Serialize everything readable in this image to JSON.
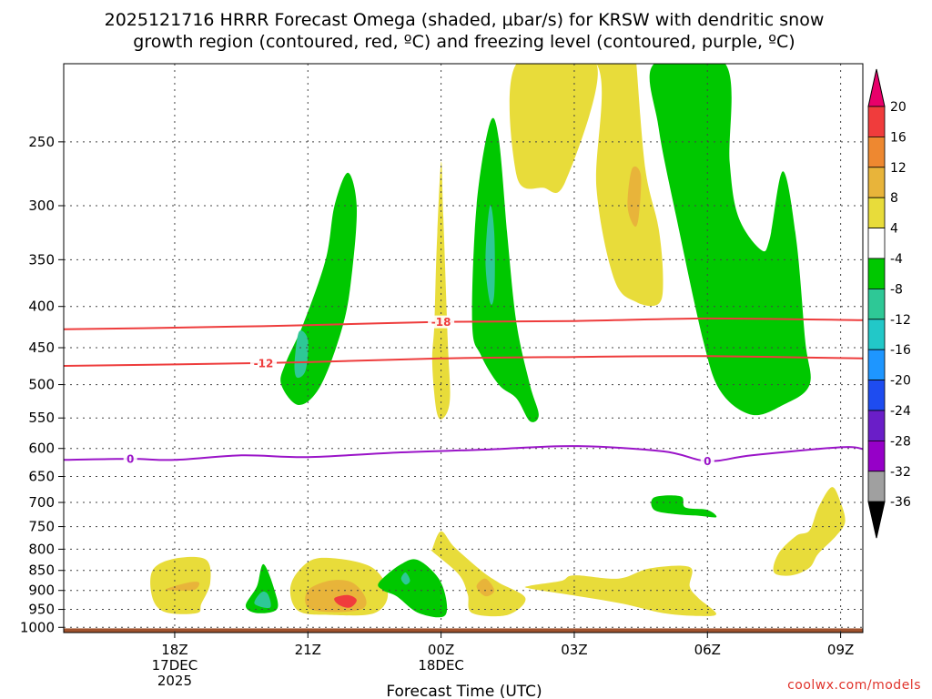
{
  "chart_data": {
    "type": "heatmap",
    "title_line1": "2025121716 HRRR Forecast Omega (shaded, µbar/s) for KRSW with dendritic snow",
    "title_line2": "growth region (contoured, red, ºC) and freezing level (contoured, purple, ºC)",
    "xlabel": "Forecast Time (UTC)",
    "credit": "coolwx.com/models",
    "x_unit": "hours since 2025121716",
    "xlim": [
      -0.5,
      17.5
    ],
    "x_ticks": [
      {
        "x": 2,
        "label": "18Z",
        "sub1": "17DEC",
        "sub2": "2025"
      },
      {
        "x": 5,
        "label": "21Z",
        "sub1": "",
        "sub2": ""
      },
      {
        "x": 8,
        "label": "00Z",
        "sub1": "18DEC",
        "sub2": ""
      },
      {
        "x": 11,
        "label": "03Z",
        "sub1": "",
        "sub2": ""
      },
      {
        "x": 14,
        "label": "06Z",
        "sub1": "",
        "sub2": ""
      },
      {
        "x": 17,
        "label": "09Z",
        "sub1": "",
        "sub2": ""
      }
    ],
    "y_ticks": [
      250,
      300,
      350,
      400,
      450,
      500,
      550,
      600,
      650,
      700,
      750,
      800,
      850,
      900,
      950,
      1000
    ],
    "ylim": [
      200,
      1015
    ],
    "y_scale": "log-pressure",
    "colorbar": {
      "levels": [
        "20",
        "16",
        "12",
        "8",
        "4",
        "-4",
        "-8",
        "-12",
        "-16",
        "-20",
        "-24",
        "-28",
        "-32",
        "-36"
      ],
      "colors": [
        "#e8006a",
        "#f03c3c",
        "#ee8830",
        "#e8b43a",
        "#e8dc3a",
        "#ffffff",
        "#00c800",
        "#2ec896",
        "#22c8c8",
        "#1e96ff",
        "#1e4cf0",
        "#6a1ec8",
        "#9600c8",
        "#a0a0a0",
        "#000000"
      ]
    },
    "red_contours": [
      {
        "label": "-18",
        "label_x": 8.0,
        "points": [
          [
            -0.5,
            427
          ],
          [
            2,
            425
          ],
          [
            5,
            422
          ],
          [
            8,
            418
          ],
          [
            11,
            417
          ],
          [
            14,
            414
          ],
          [
            17.5,
            416
          ]
        ]
      },
      {
        "label": "-12",
        "label_x": 4.0,
        "points": [
          [
            -0.5,
            474
          ],
          [
            2,
            472
          ],
          [
            5,
            469
          ],
          [
            8,
            464
          ],
          [
            11,
            462
          ],
          [
            14,
            461
          ],
          [
            17.5,
            464
          ]
        ]
      }
    ],
    "purple_contours": [
      {
        "label": "0",
        "label_x": 1.0,
        "points": [
          [
            -0.5,
            620
          ],
          [
            1,
            618
          ],
          [
            2,
            620
          ],
          [
            3.5,
            612
          ],
          [
            5,
            615
          ],
          [
            7,
            607
          ],
          [
            9,
            602
          ],
          [
            11,
            596
          ],
          [
            13,
            605
          ],
          [
            14,
            622
          ],
          [
            15,
            612
          ],
          [
            17,
            598
          ],
          [
            17.5,
            601
          ]
        ]
      }
    ],
    "label_0b_x": 14.0,
    "omega_regions": [
      {
        "color": "#e8dc3a",
        "points": [
          [
            1.5,
            850
          ],
          [
            2.0,
            822
          ],
          [
            2.7,
            824
          ],
          [
            2.8,
            880
          ],
          [
            2.6,
            935
          ],
          [
            2.5,
            960
          ],
          [
            1.8,
            958
          ],
          [
            1.5,
            920
          ]
        ]
      },
      {
        "color": "#e8b43a",
        "points": [
          [
            1.8,
            897
          ],
          [
            2.3,
            880
          ],
          [
            2.55,
            880
          ],
          [
            2.45,
            898
          ],
          [
            2.1,
            900
          ]
        ]
      },
      {
        "color": "#00c800",
        "points": [
          [
            3.6,
            940
          ],
          [
            3.85,
            890
          ],
          [
            4.0,
            835
          ],
          [
            4.25,
            900
          ],
          [
            4.3,
            950
          ],
          [
            3.85,
            960
          ]
        ]
      },
      {
        "color": "#2ec896",
        "points": [
          [
            3.8,
            935
          ],
          [
            3.95,
            905
          ],
          [
            4.1,
            910
          ],
          [
            4.15,
            945
          ]
        ]
      },
      {
        "color": "#e8dc3a",
        "points": [
          [
            4.8,
            850
          ],
          [
            5.3,
            820
          ],
          [
            6.4,
            840
          ],
          [
            6.8,
            905
          ],
          [
            6.5,
            960
          ],
          [
            5.5,
            965
          ],
          [
            4.8,
            955
          ],
          [
            4.6,
            900
          ]
        ]
      },
      {
        "color": "#e8b43a",
        "points": [
          [
            5.0,
            900
          ],
          [
            5.5,
            875
          ],
          [
            6.0,
            880
          ],
          [
            6.3,
            920
          ],
          [
            6.2,
            950
          ],
          [
            5.5,
            957
          ],
          [
            5.0,
            945
          ]
        ]
      },
      {
        "color": "#f03c3c",
        "points": [
          [
            5.6,
            920
          ],
          [
            5.9,
            912
          ],
          [
            6.1,
            925
          ],
          [
            5.95,
            945
          ],
          [
            5.7,
            938
          ]
        ]
      },
      {
        "color": "#00c800",
        "points": [
          [
            6.6,
            880
          ],
          [
            7.1,
            835
          ],
          [
            7.5,
            826
          ],
          [
            8.0,
            880
          ],
          [
            8.1,
            965
          ],
          [
            7.5,
            960
          ],
          [
            7.0,
            915
          ],
          [
            6.7,
            900
          ]
        ]
      },
      {
        "color": "#2ec896",
        "points": [
          [
            7.1,
            870
          ],
          [
            7.2,
            855
          ],
          [
            7.3,
            875
          ],
          [
            7.2,
            885
          ]
        ]
      },
      {
        "color": "#e8dc3a",
        "points": [
          [
            7.8,
            800
          ],
          [
            8.0,
            760
          ],
          [
            8.3,
            795
          ],
          [
            8.9,
            850
          ],
          [
            9.3,
            880
          ],
          [
            9.9,
            920
          ],
          [
            9.5,
            965
          ],
          [
            8.7,
            960
          ],
          [
            8.6,
            910
          ],
          [
            8.4,
            860
          ],
          [
            7.8,
            805
          ]
        ]
      },
      {
        "color": "#e8b43a",
        "points": [
          [
            8.8,
            890
          ],
          [
            9.0,
            870
          ],
          [
            9.2,
            900
          ],
          [
            9.0,
            915
          ]
        ]
      },
      {
        "color": "#00c800",
        "points": [
          [
            4.5,
            470
          ],
          [
            4.9,
            420
          ],
          [
            5.4,
            350
          ],
          [
            5.6,
            300
          ],
          [
            5.9,
            273
          ],
          [
            6.1,
            300
          ],
          [
            6.0,
            360
          ],
          [
            5.8,
            420
          ],
          [
            5.3,
            500
          ],
          [
            4.8,
            530
          ],
          [
            4.4,
            500
          ]
        ]
      },
      {
        "color": "#2ec896",
        "points": [
          [
            4.7,
            470
          ],
          [
            4.8,
            430
          ],
          [
            5.0,
            440
          ],
          [
            4.95,
            480
          ],
          [
            4.75,
            490
          ]
        ]
      },
      {
        "color": "#e8dc3a",
        "points": [
          [
            7.85,
            420
          ],
          [
            7.9,
            340
          ],
          [
            8.0,
            265
          ],
          [
            8.05,
            310
          ],
          [
            8.15,
            440
          ],
          [
            8.2,
            520
          ],
          [
            8.05,
            550
          ],
          [
            7.9,
            540
          ],
          [
            7.8,
            470
          ]
        ]
      },
      {
        "color": "#00c800",
        "points": [
          [
            8.7,
            420
          ],
          [
            8.8,
            300
          ],
          [
            9.1,
            237
          ],
          [
            9.3,
            248
          ],
          [
            9.5,
            330
          ],
          [
            9.7,
            420
          ],
          [
            10.0,
            500
          ],
          [
            10.2,
            545
          ],
          [
            10.0,
            555
          ],
          [
            9.7,
            520
          ],
          [
            9.3,
            500
          ],
          [
            8.9,
            460
          ]
        ]
      },
      {
        "color": "#2ec896",
        "points": [
          [
            9.0,
            350
          ],
          [
            9.1,
            300
          ],
          [
            9.2,
            325
          ],
          [
            9.2,
            385
          ],
          [
            9.1,
            395
          ]
        ]
      },
      {
        "color": "#e8dc3a",
        "points": [
          [
            9.7,
            200
          ],
          [
            11.5,
            200
          ],
          [
            11.5,
            285
          ],
          [
            11.9,
            370
          ],
          [
            12.4,
            395
          ],
          [
            12.9,
            397
          ],
          [
            13.0,
            370
          ],
          [
            12.9,
            320
          ],
          [
            12.6,
            270
          ],
          [
            12.4,
            200
          ],
          [
            12.4,
            200
          ]
        ]
      },
      {
        "color": "#e8dc3a",
        "points": [
          [
            9.7,
            200
          ],
          [
            9.7,
            275
          ],
          [
            10.3,
            285
          ],
          [
            10.8,
            280
          ],
          [
            11.5,
            200
          ]
        ]
      },
      {
        "color": "#e8b43a",
        "points": [
          [
            12.2,
            300
          ],
          [
            12.3,
            270
          ],
          [
            12.5,
            275
          ],
          [
            12.45,
            310
          ],
          [
            12.35,
            318
          ]
        ]
      },
      {
        "color": "#00c800",
        "points": [
          [
            12.8,
            200
          ],
          [
            14.4,
            200
          ],
          [
            14.5,
            265
          ],
          [
            14.7,
            310
          ],
          [
            15.2,
            340
          ],
          [
            15.4,
            330
          ],
          [
            15.7,
            272
          ],
          [
            16.0,
            330
          ],
          [
            16.2,
            440
          ],
          [
            16.3,
            500
          ],
          [
            15.7,
            530
          ],
          [
            15.0,
            545
          ],
          [
            14.3,
            510
          ],
          [
            13.9,
            440
          ],
          [
            13.3,
            310
          ],
          [
            12.9,
            240
          ]
        ]
      },
      {
        "color": "#00c800",
        "points": [
          [
            12.8,
            690
          ],
          [
            13.4,
            688
          ],
          [
            13.5,
            710
          ],
          [
            14.0,
            715
          ],
          [
            14.2,
            730
          ],
          [
            13.8,
            727
          ],
          [
            13.3,
            724
          ],
          [
            12.8,
            715
          ]
        ]
      },
      {
        "color": "#e8dc3a",
        "points": [
          [
            10.0,
            888
          ],
          [
            10.7,
            876
          ],
          [
            11.0,
            862
          ],
          [
            12.0,
            870
          ],
          [
            12.7,
            845
          ],
          [
            13.6,
            842
          ],
          [
            13.6,
            890
          ],
          [
            13.8,
            920
          ],
          [
            14.2,
            962
          ],
          [
            13.8,
            968
          ],
          [
            13.0,
            960
          ],
          [
            12.1,
            935
          ],
          [
            11.1,
            915
          ],
          [
            10.0,
            895
          ]
        ]
      },
      {
        "color": "#e8dc3a",
        "points": [
          [
            15.5,
            855
          ],
          [
            15.6,
            810
          ],
          [
            16.0,
            770
          ],
          [
            16.3,
            758
          ],
          [
            16.5,
            710
          ],
          [
            16.8,
            670
          ],
          [
            17.0,
            700
          ],
          [
            17.1,
            740
          ],
          [
            16.9,
            770
          ],
          [
            16.5,
            810
          ],
          [
            16.3,
            843
          ],
          [
            15.9,
            862
          ]
        ]
      }
    ],
    "ground": {
      "color": "#a0522d",
      "from_p": 1003,
      "to_p": 1015
    }
  }
}
